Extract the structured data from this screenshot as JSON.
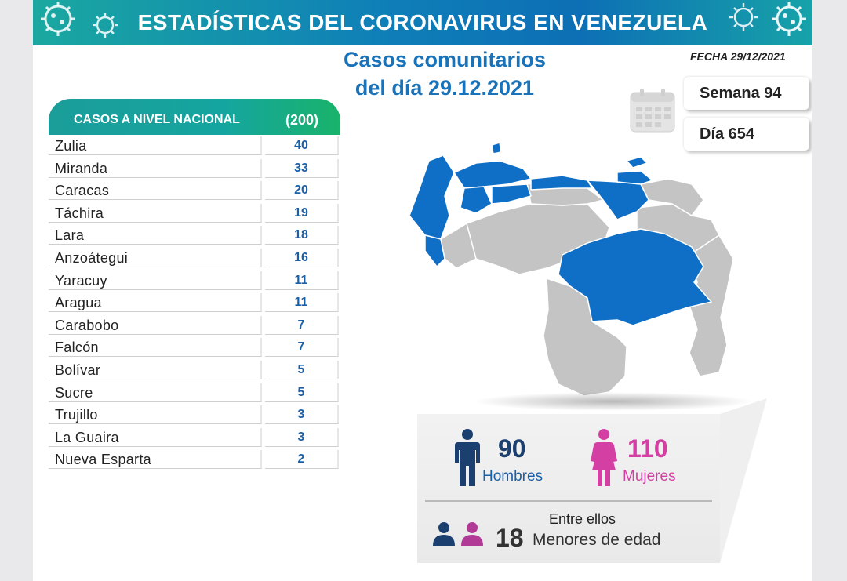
{
  "banner": {
    "title": "ESTADÍSTICAS DEL CORONAVIRUS EN VENEZUELA"
  },
  "date": "FECHA 29/12/2021",
  "subtitle": {
    "line1": "Casos comunitarios",
    "line2": "del día 29.12.2021"
  },
  "calendar": {
    "week": "Semana 94",
    "day": "Día 654",
    "icon": "calendar-icon"
  },
  "national": {
    "header": "CASOS A NIVEL NACIONAL",
    "total": "(200)"
  },
  "states": [
    {
      "name": "Zulia",
      "cases": "40"
    },
    {
      "name": "Miranda",
      "cases": "33"
    },
    {
      "name": "Caracas",
      "cases": "20"
    },
    {
      "name": "Táchira",
      "cases": "19"
    },
    {
      "name": "Lara",
      "cases": "18"
    },
    {
      "name": "Anzoátegui",
      "cases": "16"
    },
    {
      "name": "Yaracuy",
      "cases": "11"
    },
    {
      "name": "Aragua",
      "cases": "11"
    },
    {
      "name": "Carabobo",
      "cases": "7"
    },
    {
      "name": "Falcón",
      "cases": "7"
    },
    {
      "name": "Bolívar",
      "cases": "5"
    },
    {
      "name": "Sucre",
      "cases": "5"
    },
    {
      "name": "Trujillo",
      "cases": "3"
    },
    {
      "name": "La Guaira",
      "cases": "3"
    },
    {
      "name": "Nueva Esparta",
      "cases": "2"
    }
  ],
  "gender": {
    "men_count": "90",
    "men_label": "Hombres",
    "women_count": "110",
    "women_label": "Mujeres"
  },
  "minors": {
    "intro": "Entre ellos",
    "count": "18",
    "label": "Menores de edad"
  },
  "colors": {
    "accent_blue": "#1a73b8",
    "highlight_state": "#0f6fc6",
    "other_state": "#c4c4c4",
    "men": "#1b3f6e",
    "women": "#d43fa3",
    "teal": "#1aa8a0"
  }
}
